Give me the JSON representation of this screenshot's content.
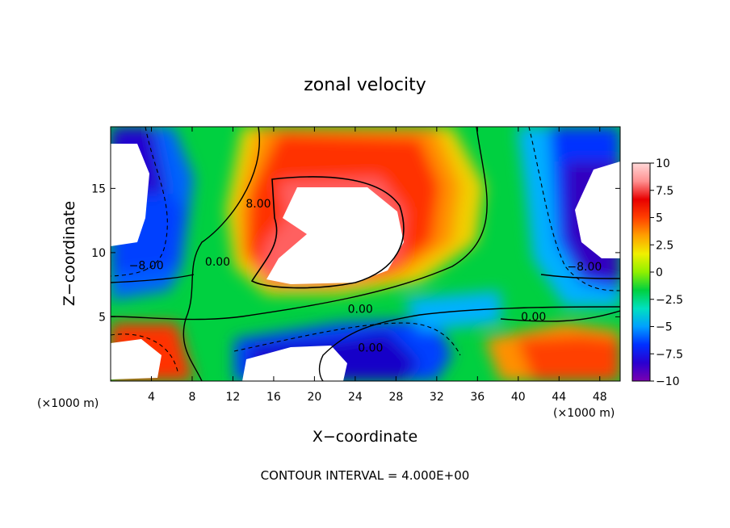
{
  "chart_data": {
    "type": "heatmap",
    "title": "zonal velocity",
    "xlabel": "X−coordinate",
    "ylabel": "Z−coordinate",
    "x_unit_left": "(×1000 m)",
    "x_unit_right": "(×1000 m)",
    "footer": "CONTOUR INTERVAL = 4.000E+00",
    "xlim": [
      0,
      50
    ],
    "ylim": [
      0,
      19.8
    ],
    "x_ticks": [
      4,
      8,
      12,
      16,
      20,
      24,
      28,
      32,
      36,
      40,
      44,
      48
    ],
    "x_tick_labels": [
      "4",
      "8",
      "12",
      "16",
      "20",
      "24",
      "28",
      "32",
      "36",
      "40",
      "44",
      "48"
    ],
    "y_ticks": [
      5,
      10,
      15
    ],
    "y_tick_labels": [
      "5",
      "10",
      "15"
    ],
    "colorbar": {
      "range": [
        -10,
        10
      ],
      "ticks": [
        10,
        7.5,
        5,
        2.5,
        0,
        -2.5,
        -5,
        -7.5,
        -10
      ],
      "tick_labels": [
        "10",
        "7.5",
        "5",
        "2.5",
        "0",
        "−2.5",
        "−5",
        "−7.5",
        "−10"
      ],
      "colors": [
        "#7a00b0",
        "#2a00d0",
        "#0030ff",
        "#00a0ff",
        "#00e0c0",
        "#00d040",
        "#90f000",
        "#f0f000",
        "#ffa000",
        "#ff4000",
        "#e80000",
        "#ff9090",
        "#ffd8d8"
      ]
    },
    "contour_labels": [
      {
        "text": "8.00",
        "x": 14.5,
        "y": 13.5
      },
      {
        "text": "0.00",
        "x": 10.5,
        "y": 9.0
      },
      {
        "text": "−8.00",
        "x": 3.5,
        "y": 8.7
      },
      {
        "text": "0.00",
        "x": 24.5,
        "y": 5.3
      },
      {
        "text": "0.00",
        "x": 41.5,
        "y": 4.7
      },
      {
        "text": "−8.00",
        "x": 46.5,
        "y": 8.6
      },
      {
        "text": "0.00",
        "x": 25.5,
        "y": 2.3
      }
    ]
  }
}
